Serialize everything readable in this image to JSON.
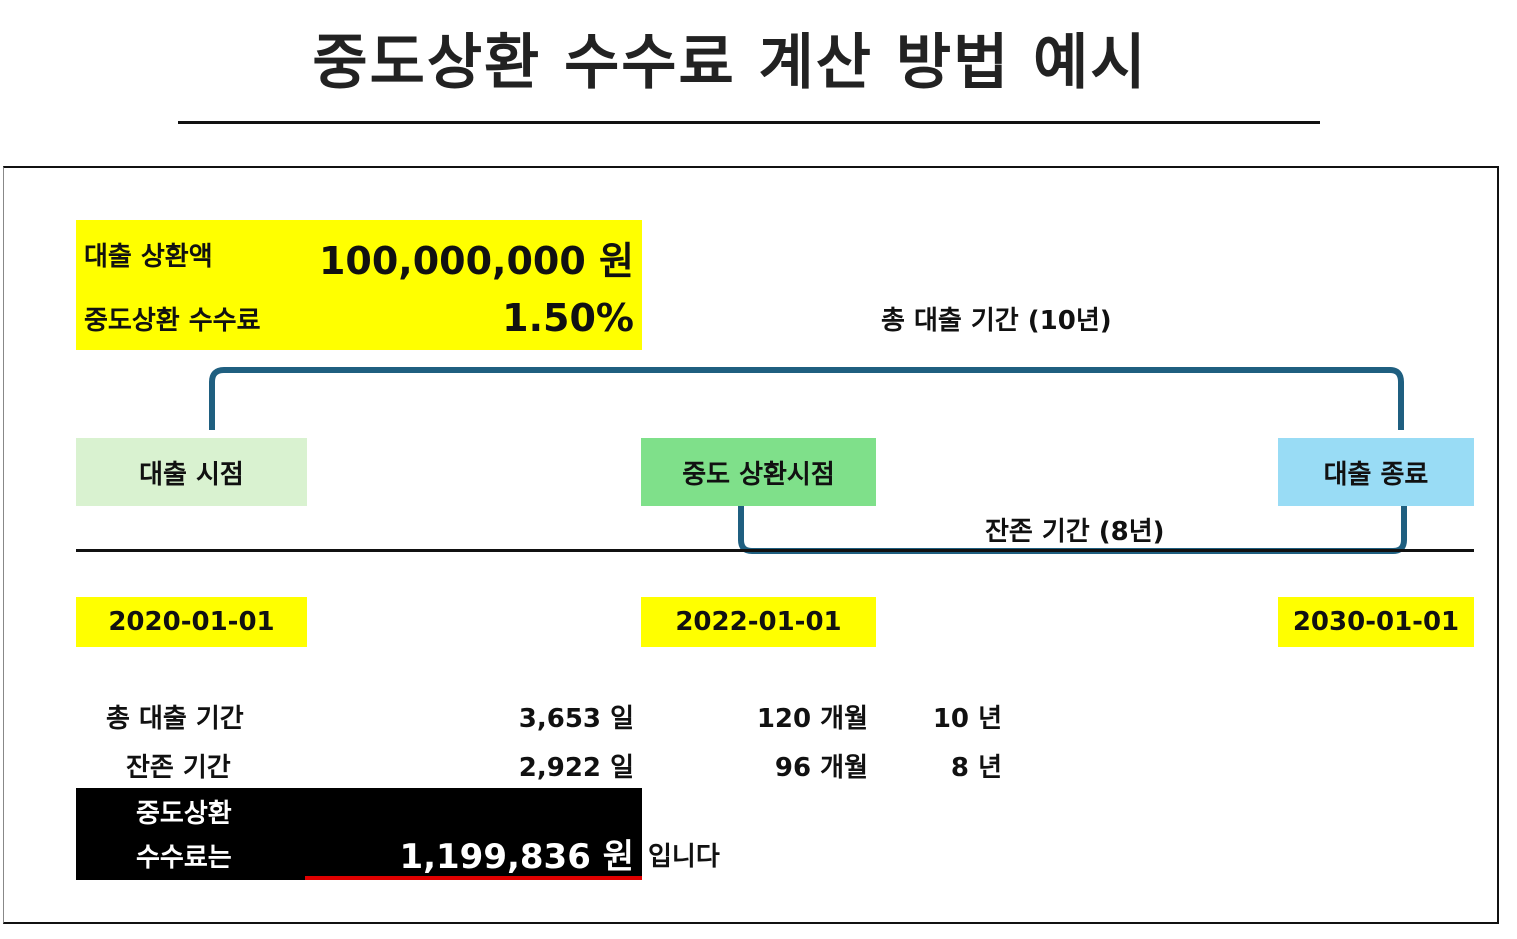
{
  "title": "중도상환 수수료 계산 방법 예시",
  "summary": {
    "loan_label": "대출 상환액",
    "loan_value": "100,000,000 원",
    "fee_rate_label": "중도상환 수수료",
    "fee_rate_value": "1.50%"
  },
  "timeline": {
    "total_period_label": "총 대출 기간 (10년)",
    "remaining_period_label": "잔존 기간 (8년)",
    "start_label": "대출 시점",
    "repay_label": "중도 상환시점",
    "end_label": "대출 종료",
    "start_date": "2020-01-01",
    "repay_date": "2022-01-01",
    "end_date": "2030-01-01"
  },
  "stats": {
    "total": {
      "label": "총 대출 기간",
      "days": "3,653 일",
      "months": "120 개월",
      "years": "10 년"
    },
    "remaining": {
      "label": "잔존 기간",
      "days": "2,922 일",
      "months": "96 개월",
      "years": "8 년"
    }
  },
  "fee": {
    "label_line1": "중도상환",
    "label_line2": "수수료는",
    "value": "1,199,836 원",
    "suffix": "입니다"
  },
  "colors": {
    "highlight": "#ffff00",
    "start_box": "#d9f2d0",
    "repay_box": "#7fe08a",
    "end_box": "#99dcf5",
    "bracket": "#1f5f80",
    "fee_underline": "#e00000"
  }
}
